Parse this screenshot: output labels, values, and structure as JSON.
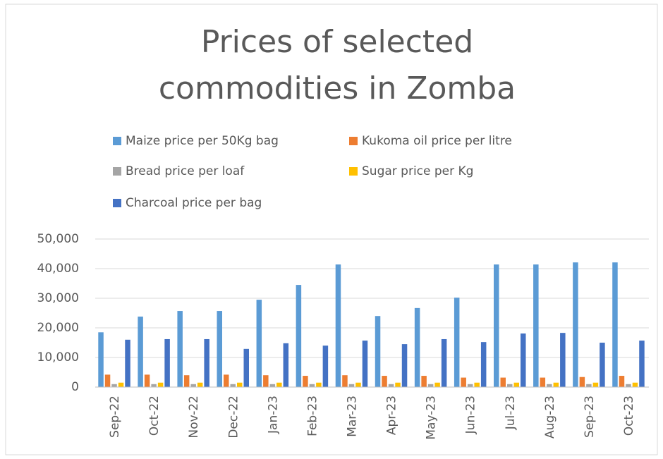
{
  "chart_data": {
    "type": "bar",
    "title": [
      "Prices of selected",
      "commodities in Zomba"
    ],
    "categories": [
      "Sep-22",
      "Oct-22",
      "Nov-22",
      "Dec-22",
      "Jan-23",
      "Feb-23",
      "Mar-23",
      "Apr-23",
      "May-23",
      "Jun-23",
      "Jul-23",
      "Aug-23",
      "Sep-23",
      "Oct-23"
    ],
    "series": [
      {
        "name": "Maize price per 50Kg bag",
        "color": "#5b9bd5",
        "values": [
          18500,
          23800,
          25700,
          25700,
          29500,
          34500,
          41400,
          24000,
          26700,
          30200,
          41400,
          41400,
          42100,
          42100
        ]
      },
      {
        "name": "Kukoma oil price per litre",
        "color": "#ed7d31",
        "values": [
          4200,
          4200,
          4000,
          4200,
          4000,
          3800,
          4000,
          3800,
          3800,
          3200,
          3200,
          3200,
          3400,
          3800
        ]
      },
      {
        "name": "Bread price per loaf",
        "color": "#a5a5a5",
        "values": [
          1000,
          1000,
          1000,
          1000,
          1000,
          1000,
          1000,
          1000,
          1000,
          1000,
          1000,
          1000,
          1000,
          1000
        ]
      },
      {
        "name": "Sugar price per Kg",
        "color": "#ffc000",
        "values": [
          1500,
          1500,
          1500,
          1500,
          1500,
          1500,
          1500,
          1500,
          1500,
          1500,
          1500,
          1500,
          1500,
          1500
        ]
      },
      {
        "name": "Charcoal price per bag",
        "color": "#4472c4",
        "values": [
          16000,
          16200,
          16200,
          12900,
          14800,
          14000,
          15700,
          14500,
          16200,
          15200,
          18100,
          18300,
          15000,
          15700
        ]
      }
    ],
    "ylim": [
      0,
      50000
    ],
    "yticks": [
      {
        "value": 0,
        "label": "0"
      },
      {
        "value": 10000,
        "label": "10,000"
      },
      {
        "value": 20000,
        "label": "20,000"
      },
      {
        "value": 30000,
        "label": "30,000"
      },
      {
        "value": 40000,
        "label": "40,000"
      },
      {
        "value": 50000,
        "label": "50,000"
      }
    ],
    "grid": true
  }
}
